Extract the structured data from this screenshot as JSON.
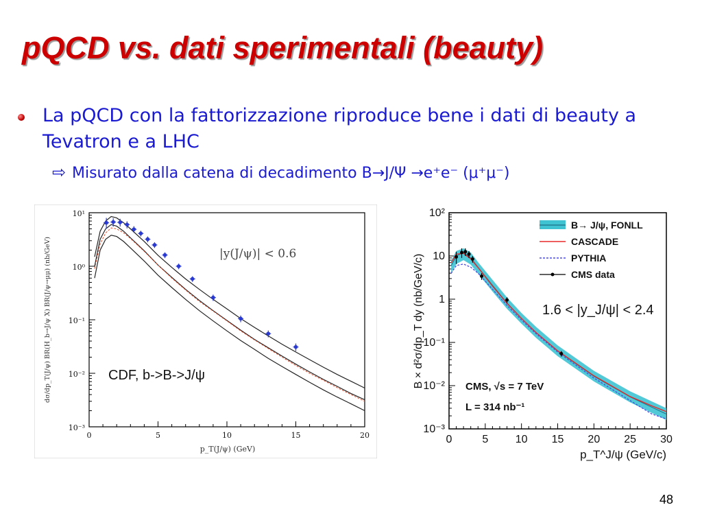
{
  "slide": {
    "title": "pQCD vs. dati sperimentali (beauty)",
    "bullet": "La pQCD con la fattorizzazione riproduce bene i dati di beauty a Tevatron e a LHC",
    "sub_arrow": "⇨",
    "sub_bullet": "Misurato dalla catena di decadimento B→J/Ψ →e⁺e⁻ (μ⁺μ⁻)",
    "page_number": "48"
  },
  "chart_data": [
    {
      "type": "line",
      "title": "",
      "xlabel": "p_T(J/ψ) (GeV)",
      "ylabel": "dσ/dp_T(J/ψ) BR(H_b→J/ψ X) BR(J/ψ→μμ) (nb/GeV)",
      "xlim": [
        0,
        20
      ],
      "ylim": [
        0.001,
        10
      ],
      "log_y": true,
      "xticks": [
        "0",
        "5",
        "10",
        "15",
        "20"
      ],
      "yticks": [
        "10⁻³",
        "10⁻²",
        "10⁻¹",
        "10⁰",
        "10¹"
      ],
      "annotations": [
        "|y(J/ψ)| < 0.6",
        "CDF, b->B->J/ψ"
      ],
      "colors": {
        "theory": "#222222",
        "data": "#2a3ad0",
        "alt": "#e05030"
      },
      "series": [
        {
          "x": [
            0.4,
            0.8,
            1.2,
            1.6,
            2.0,
            2.5,
            3,
            4,
            5,
            6,
            7,
            8,
            9,
            10,
            11,
            12,
            13,
            14,
            15,
            16,
            17,
            18,
            19,
            20
          ],
          "values": [
            1.5,
            4.5,
            7,
            8.5,
            8.0,
            6.5,
            5.0,
            2.9,
            1.6,
            0.95,
            0.58,
            0.37,
            0.24,
            0.16,
            0.105,
            0.072,
            0.05,
            0.035,
            0.025,
            0.018,
            0.013,
            0.0095,
            0.0071,
            0.0053
          ]
        },
        {
          "x": [
            0.4,
            0.8,
            1.2,
            1.6,
            2.0,
            2.5,
            3,
            4,
            5,
            6,
            7,
            8,
            9,
            10,
            11,
            12,
            13,
            14,
            15,
            16,
            17,
            18,
            19,
            20
          ],
          "values": [
            1.0,
            3.2,
            5.0,
            6.0,
            5.6,
            4.5,
            3.4,
            1.95,
            1.05,
            0.62,
            0.37,
            0.23,
            0.148,
            0.097,
            0.064,
            0.043,
            0.03,
            0.021,
            0.0148,
            0.0106,
            0.0077,
            0.0057,
            0.0042,
            0.0032
          ]
        },
        {
          "x": [
            0.4,
            0.8,
            1.2,
            1.6,
            2.0,
            2.5,
            3,
            4,
            5,
            6,
            7,
            8,
            9,
            10,
            11,
            12,
            13,
            14,
            15,
            16,
            17,
            18,
            19,
            20
          ],
          "values": [
            0.6,
            2.0,
            3.2,
            3.8,
            3.6,
            2.9,
            2.2,
            1.25,
            0.68,
            0.4,
            0.24,
            0.148,
            0.095,
            0.062,
            0.041,
            0.028,
            0.019,
            0.0134,
            0.0095,
            0.0068,
            0.0049,
            0.0036,
            0.0027,
            0.002
          ]
        },
        {
          "x": [
            0.4,
            0.8,
            1.2,
            1.6,
            2.0,
            2.5,
            3,
            4,
            5,
            6,
            7,
            8,
            9,
            10,
            11,
            12,
            13,
            14,
            15,
            16,
            17,
            18,
            19,
            20
          ],
          "values": [
            0.9,
            2.6,
            4.2,
            5.2,
            5.0,
            4.2,
            3.3,
            1.9,
            1.05,
            0.6,
            0.36,
            0.22,
            0.145,
            0.095,
            0.062,
            0.042,
            0.029,
            0.02,
            0.014,
            0.01,
            0.0074,
            0.0054,
            0.004,
            0.003
          ]
        },
        {
          "x": [
            1.25,
            1.75,
            2.25,
            2.75,
            3.25,
            3.75,
            4.25,
            4.75,
            5.5,
            6.5,
            7.5,
            9,
            11,
            13,
            15
          ],
          "values": [
            6.5,
            6.7,
            6.6,
            6.0,
            4.9,
            4.1,
            3.2,
            2.5,
            1.62,
            1.0,
            0.58,
            0.26,
            0.105,
            0.055,
            0.031
          ],
          "errors": [
            1.5,
            1.2,
            1.1,
            0.9,
            0.7,
            0.5,
            0.4,
            0.3,
            0.2,
            0.12,
            0.07,
            0.035,
            0.015,
            0.008,
            0.005
          ]
        }
      ]
    },
    {
      "type": "area",
      "title": "",
      "xlabel": "p_T^J/ψ (GeV/c)",
      "ylabel": "B × d²σ/dp_T dy (nb/GeV/c)",
      "xlim": [
        0,
        30
      ],
      "ylim": [
        0.001,
        100
      ],
      "log_y": true,
      "xticks": [
        "0",
        "5",
        "10",
        "15",
        "20",
        "25",
        "30"
      ],
      "yticks": [
        "10⁻³",
        "10⁻²",
        "10⁻¹",
        "1",
        "10",
        "10²"
      ],
      "annotations": [
        "1.6 < |y_J/ψ| < 2.4",
        "CMS, √s = 7 TeV",
        "L = 314 nb⁻¹"
      ],
      "legend_position": "top-right",
      "colors": {
        "fonll": "#3fc3d3",
        "fonll_center": "#1f6f86",
        "cascade": "#e82828",
        "pythia": "#4a4ae0",
        "cms": "#000000"
      },
      "series": [
        {
          "name": "B→ J/ψ, FONLL",
          "x": [
            0.3,
            1,
            2,
            3,
            4,
            6,
            8,
            10,
            12,
            15,
            20,
            25,
            30
          ],
          "values": [
            6,
            10,
            12,
            9,
            5.5,
            2.1,
            0.82,
            0.36,
            0.17,
            0.063,
            0.0165,
            0.0055,
            0.0022
          ],
          "band_low": [
            4,
            6.5,
            8,
            6.3,
            3.9,
            1.5,
            0.6,
            0.27,
            0.128,
            0.048,
            0.0125,
            0.0041,
            0.0016
          ],
          "band_high": [
            8,
            13,
            15,
            12,
            7.2,
            2.8,
            1.1,
            0.48,
            0.23,
            0.085,
            0.022,
            0.0074,
            0.003
          ]
        },
        {
          "name": "CASCADE",
          "x": [
            0.3,
            1,
            2,
            3,
            4,
            6,
            8,
            10,
            12,
            15,
            20,
            25,
            28,
            30
          ],
          "values": [
            7,
            11,
            11.5,
            8.5,
            5.4,
            2.0,
            0.8,
            0.36,
            0.17,
            0.064,
            0.017,
            0.0056,
            0.0034,
            0.0025
          ]
        },
        {
          "name": "PYTHIA",
          "x": [
            0.3,
            1,
            2,
            3,
            4,
            6,
            8,
            10,
            12,
            15,
            20,
            25,
            28,
            30
          ],
          "values": [
            4,
            6,
            6.5,
            5.5,
            4,
            1.7,
            0.72,
            0.33,
            0.16,
            0.06,
            0.015,
            0.0045,
            0.0022,
            0.0017
          ]
        },
        {
          "name": "CMS data",
          "x": [
            1,
            1.75,
            2.25,
            2.75,
            3.25,
            4.5,
            8,
            15.5
          ],
          "values": [
            9.5,
            12,
            12.5,
            11,
            8.5,
            3.4,
            0.96,
            0.055
          ],
          "errors": [
            3,
            3,
            2.5,
            2,
            1.5,
            0.6,
            0.15,
            0.008
          ]
        }
      ]
    }
  ]
}
